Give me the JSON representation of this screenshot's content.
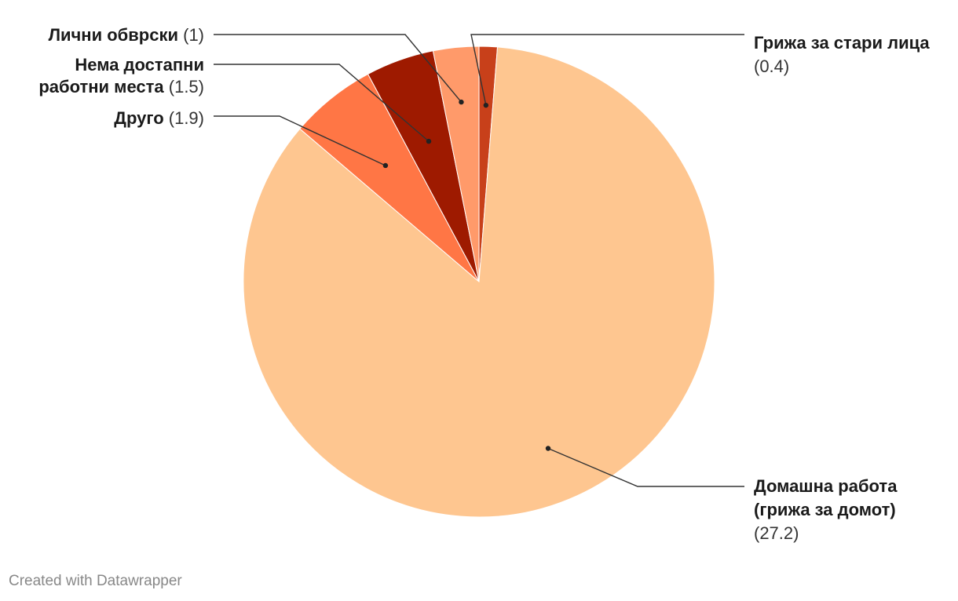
{
  "chart_data": {
    "type": "pie",
    "slices": [
      {
        "label": "Грижа за стари лица",
        "value": 0.4,
        "color": "#c8401a"
      },
      {
        "label": "Домашна работа (грижа за домот)",
        "value": 27.2,
        "color": "#fec690"
      },
      {
        "label": "Друго",
        "value": 1.9,
        "color": "#ff7645"
      },
      {
        "label": "Нема достапни работни места",
        "value": 1.5,
        "color": "#9e1a00"
      },
      {
        "label": "Лични обврски",
        "value": 1,
        "color": "#ff9a6a"
      }
    ]
  },
  "footer": {
    "credit": "Created with Datawrapper"
  }
}
